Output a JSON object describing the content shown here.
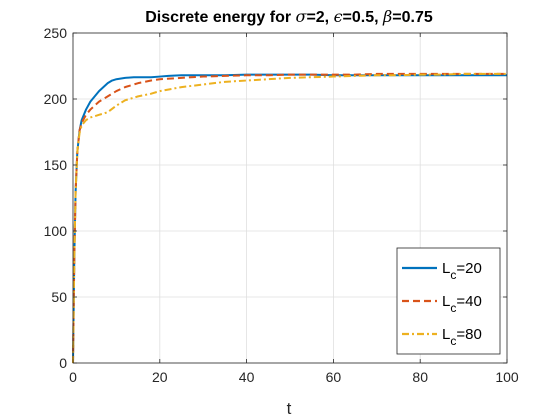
{
  "chart_data": {
    "type": "line",
    "title_parts": {
      "prefix": "Discrete energy for ",
      "sigma_sym": "σ",
      "sigma_val": "=2, ",
      "eps_sym": "ϵ",
      "eps_val": "=0.5, ",
      "beta_sym": "β",
      "beta_val": "=0.75"
    },
    "xlabel": "t",
    "ylabel": "",
    "xlim": [
      0,
      100
    ],
    "ylim": [
      0,
      250
    ],
    "xticks": [
      0,
      20,
      40,
      60,
      80,
      100
    ],
    "yticks": [
      0,
      50,
      100,
      150,
      200,
      250
    ],
    "grid": true,
    "legend_position": "bottom-right",
    "series": [
      {
        "name_main": "L",
        "name_sub": "c",
        "name_value": "=20",
        "color": "#0072BD",
        "dash": "solid",
        "x": [
          0,
          0.3,
          0.6,
          1,
          1.5,
          2,
          3,
          4,
          5,
          6,
          7,
          8,
          9,
          10,
          12,
          14,
          16,
          18,
          20,
          22,
          25,
          28,
          30,
          35,
          40,
          45,
          50,
          55,
          60,
          65,
          70,
          75,
          80,
          85,
          90,
          95,
          100
        ],
        "y": [
          0,
          80,
          130,
          160,
          176,
          184,
          192,
          198,
          202,
          206,
          209,
          212,
          214,
          215,
          216,
          216.5,
          216.5,
          216.5,
          217,
          217.5,
          218,
          218,
          218,
          218,
          218.5,
          218.5,
          218.5,
          218.5,
          218,
          218,
          218,
          218,
          218,
          218,
          218,
          218,
          218
        ]
      },
      {
        "name_main": "L",
        "name_sub": "c",
        "name_value": "=40",
        "color": "#D95319",
        "dash": "dashed",
        "x": [
          0,
          0.3,
          0.6,
          1,
          1.5,
          2,
          3,
          4,
          5,
          6,
          7,
          8,
          10,
          12,
          15,
          18,
          20,
          25,
          30,
          35,
          40,
          45,
          50,
          55,
          60,
          65,
          70,
          75,
          80,
          85,
          90,
          95,
          100
        ],
        "y": [
          0,
          80,
          130,
          160,
          176,
          182,
          188,
          192,
          195,
          198,
          200,
          202,
          206,
          209,
          212,
          214,
          215,
          216,
          217,
          217.5,
          218,
          218,
          218.5,
          218.5,
          218.5,
          218.5,
          219,
          219,
          219,
          219,
          219,
          219,
          219
        ]
      },
      {
        "name_main": "L",
        "name_sub": "c",
        "name_value": "=80",
        "color": "#EDB120",
        "dash": "dashdot",
        "x": [
          0,
          0.3,
          0.6,
          1,
          1.5,
          2,
          3,
          4,
          5,
          6,
          7,
          8,
          10,
          12,
          15,
          18,
          20,
          25,
          30,
          35,
          40,
          45,
          50,
          55,
          60,
          65,
          70,
          75,
          80,
          85,
          90,
          95,
          100
        ],
        "y": [
          0,
          80,
          130,
          160,
          174,
          180,
          184,
          186,
          187,
          188,
          189,
          190,
          195,
          199,
          202,
          204,
          206,
          209,
          211,
          213,
          214,
          215,
          216,
          216.5,
          217,
          217.5,
          218,
          218,
          218.5,
          218.5,
          219,
          219,
          219
        ]
      }
    ]
  }
}
